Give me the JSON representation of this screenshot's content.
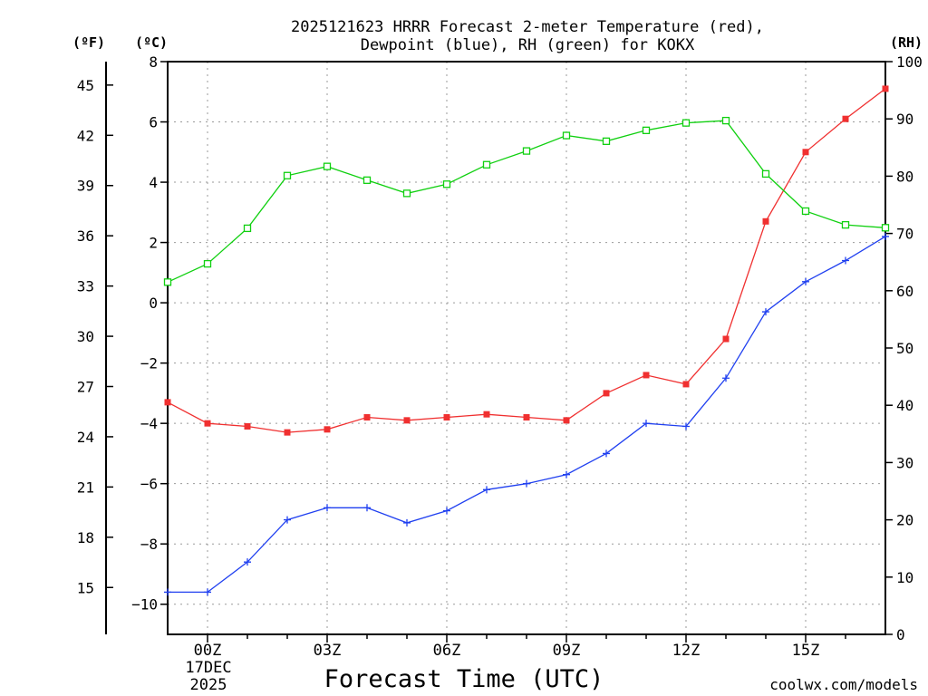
{
  "title_line1": "2025121623 HRRR Forecast 2-meter Temperature (red),",
  "title_line2": "Dewpoint (blue), RH (green) for KOKX",
  "unit_f": "(ºF)",
  "unit_c": "(ºC)",
  "unit_rh": "(RH)",
  "xlabel": "Forecast Time (UTC)",
  "watermark": "coolwx.com/models",
  "date_line1": "17DEC",
  "date_line2": "2025",
  "colors": {
    "temp": "#f03030",
    "dewpoint": "#2040f0",
    "rh": "#10d010",
    "watermark": "#e03030"
  },
  "chart_data": {
    "type": "line",
    "x": [
      -1,
      0,
      1,
      2,
      3,
      4,
      5,
      6,
      7,
      8,
      9,
      10,
      11,
      12,
      13,
      14,
      15,
      16,
      17
    ],
    "xlim": [
      -1,
      17
    ],
    "x_ticks": [
      0,
      3,
      6,
      9,
      12,
      15
    ],
    "x_tick_labels": [
      "00Z",
      "03Z",
      "06Z",
      "09Z",
      "12Z",
      "15Z"
    ],
    "left_axis_c": {
      "range": [
        -11,
        8
      ],
      "ticks": [
        -10,
        -8,
        -6,
        -4,
        -2,
        0,
        2,
        4,
        6,
        8
      ],
      "tick_labels": [
        "−10",
        "−8",
        "−6",
        "−4",
        "−2",
        "0",
        "2",
        "4",
        "6",
        "8"
      ]
    },
    "left_axis_f": {
      "ticks": [
        15,
        18,
        21,
        24,
        27,
        30,
        33,
        36,
        39,
        42,
        45
      ],
      "tick_labels": [
        "15",
        "18",
        "21",
        "24",
        "27",
        "30",
        "33",
        "36",
        "39",
        "42",
        "45"
      ]
    },
    "right_axis_rh": {
      "range": [
        0,
        100
      ],
      "ticks": [
        0,
        10,
        20,
        30,
        40,
        50,
        60,
        70,
        80,
        90,
        100
      ],
      "tick_labels": [
        "0",
        "10",
        "20",
        "30",
        "40",
        "50",
        "60",
        "70",
        "80",
        "90",
        "100"
      ]
    },
    "series": [
      {
        "name": "Temperature",
        "axis": "C",
        "values": [
          -3.3,
          -4.0,
          -4.1,
          -4.3,
          -4.2,
          -3.8,
          -3.9,
          -3.8,
          -3.7,
          -3.8,
          -3.9,
          -3.0,
          -2.4,
          -2.7,
          -1.2,
          2.7,
          5.0,
          6.1,
          7.1
        ]
      },
      {
        "name": "Dewpoint",
        "axis": "C",
        "values": [
          -9.6,
          -9.6,
          -8.6,
          -7.2,
          -6.8,
          -6.8,
          -7.3,
          -6.9,
          -6.2,
          -6.0,
          -5.7,
          -5.0,
          -4.0,
          -4.1,
          -2.5,
          -0.3,
          0.7,
          1.4,
          2.2
        ]
      },
      {
        "name": "RH",
        "axis": "RH",
        "values": [
          61.5,
          64.7,
          70.9,
          80.1,
          81.7,
          79.3,
          77.0,
          78.6,
          82.0,
          84.4,
          87.1,
          86.1,
          88.0,
          89.3,
          89.7,
          80.4,
          73.9,
          71.5,
          71.0
        ]
      }
    ]
  }
}
